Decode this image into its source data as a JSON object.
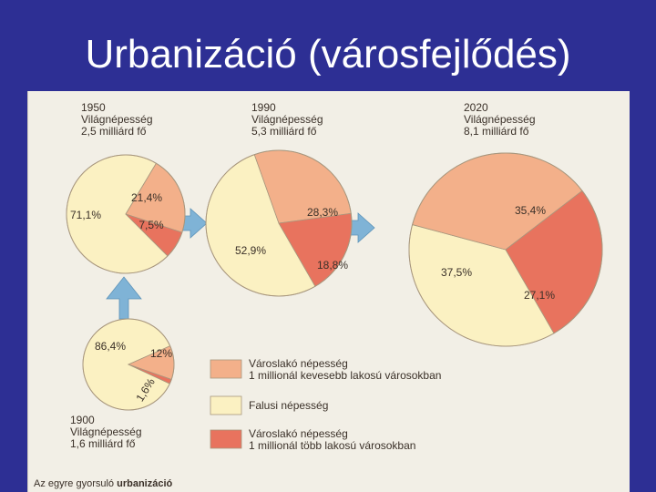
{
  "slide": {
    "title": "Urbanizáció (városfejlődés)"
  },
  "colors": {
    "urban_small": "#f3b08a",
    "rural": "#fbf1c2",
    "urban_large": "#e8735e",
    "arrow": "#7fb3d6",
    "outline": "#a8977e"
  },
  "legend": [
    {
      "key": "urban_small",
      "line1": "Városlakó népesség",
      "line2": "1 millionál kevesebb lakosú városokban"
    },
    {
      "key": "rural",
      "line1": "Falusi népesség",
      "line2": ""
    },
    {
      "key": "urban_large",
      "line1": "Városlakó népesség",
      "line2": "1 millionál több lakosú városokban"
    }
  ],
  "caption": {
    "prefix": "Az egyre gyorsuló ",
    "bold": "urbanizáció"
  },
  "chart_data": [
    {
      "type": "pie",
      "year": "1900",
      "line2": "Világnépesség",
      "line3": "1,6 milliárd fő",
      "slices": [
        {
          "key": "rural",
          "value": 86.4,
          "label": "86,4%"
        },
        {
          "key": "urban_small",
          "value": 12.0,
          "label": "12%"
        },
        {
          "key": "urban_large",
          "value": 1.6,
          "label": "1,6%"
        }
      ]
    },
    {
      "type": "pie",
      "year": "1950",
      "line2": "Világnépesség",
      "line3": "2,5 milliárd fő",
      "slices": [
        {
          "key": "rural",
          "value": 71.1,
          "label": "71,1%"
        },
        {
          "key": "urban_small",
          "value": 21.4,
          "label": "21,4%"
        },
        {
          "key": "urban_large",
          "value": 7.5,
          "label": "7,5%"
        }
      ]
    },
    {
      "type": "pie",
      "year": "1990",
      "line2": "Világnépesség",
      "line3": "5,3 milliárd fő",
      "slices": [
        {
          "key": "rural",
          "value": 52.9,
          "label": "52,9%"
        },
        {
          "key": "urban_small",
          "value": 28.3,
          "label": "28,3%"
        },
        {
          "key": "urban_large",
          "value": 18.8,
          "label": "18,8%"
        }
      ]
    },
    {
      "type": "pie",
      "year": "2020",
      "line2": "Világnépesség",
      "line3": "8,1 milliárd fő",
      "slices": [
        {
          "key": "rural",
          "value": 37.5,
          "label": "37,5%"
        },
        {
          "key": "urban_small",
          "value": 35.4,
          "label": "35,4%"
        },
        {
          "key": "urban_large",
          "value": 27.1,
          "label": "27,1%"
        }
      ]
    }
  ]
}
